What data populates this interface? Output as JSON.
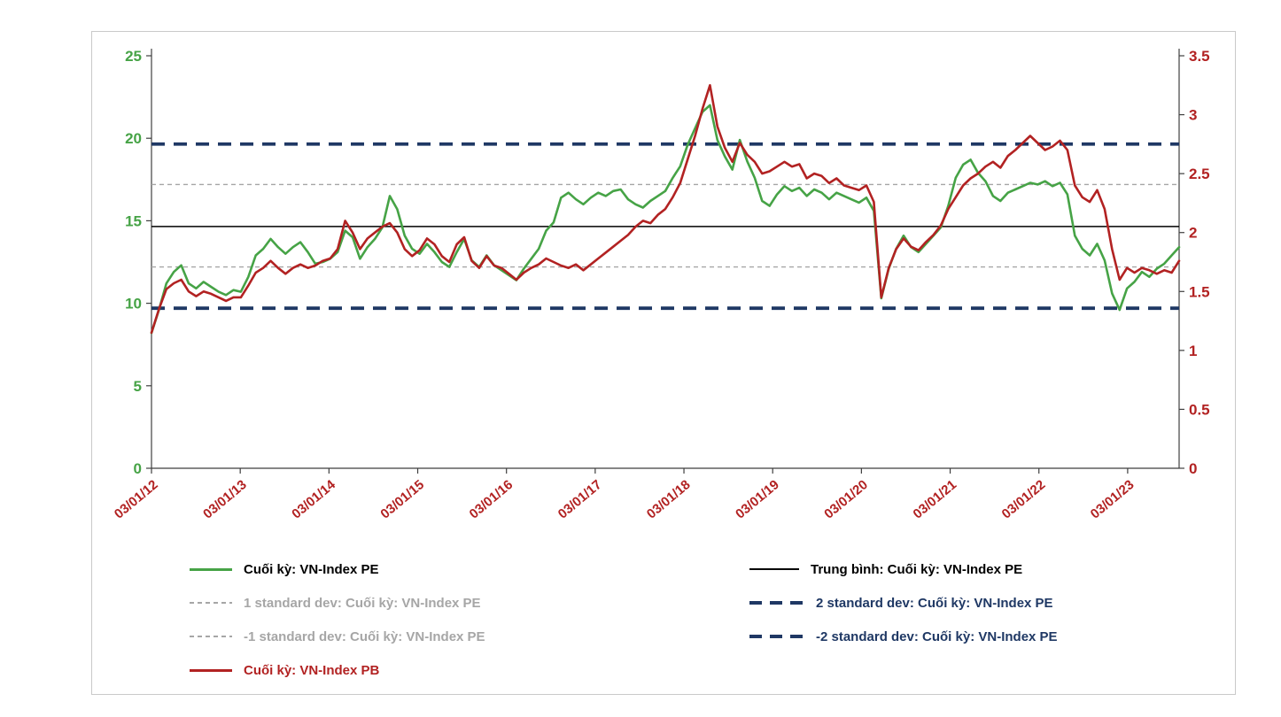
{
  "colors": {
    "pe_green": "#46A346",
    "pb_red": "#B22222",
    "navy": "#1F3864",
    "gray": "#A6A6A6",
    "mean_black": "#000000",
    "frame_border": "#c9c9c9"
  },
  "legend": {
    "col1": [
      {
        "label": "Cuối kỳ: VN-Index PE",
        "color": "#000000",
        "sample": "green-solid"
      },
      {
        "label": "1 standard dev: Cuối kỳ: VN-Index PE",
        "color": "#A6A6A6",
        "sample": "gray-dashed"
      },
      {
        "label": "-1 standard dev: Cuối kỳ: VN-Index PE",
        "color": "#A6A6A6",
        "sample": "gray-dashed"
      },
      {
        "label": "Cuối kỳ: VN-Index PB",
        "color": "#B22222",
        "sample": "red-solid"
      }
    ],
    "col2": [
      {
        "label": "Trung bình: Cuối kỳ: VN-Index PE",
        "color": "#000000",
        "sample": "black-solid"
      },
      {
        "label": "2 standard dev: Cuối kỳ: VN-Index PE",
        "color": "#1F3864",
        "sample": "navy-dashed"
      },
      {
        "label": "-2 standard dev: Cuối kỳ: VN-Index PE",
        "color": "#1F3864",
        "sample": "navy-dashed"
      }
    ]
  },
  "chart_data": {
    "type": "line",
    "title": "",
    "grid": false,
    "legend_position": "bottom",
    "x_interval": "monthly",
    "x_start": "2012-01",
    "x_range_years": [
      2012.0,
      2023.58
    ],
    "x_tick_labels": [
      "03/01/12",
      "03/01/13",
      "03/01/14",
      "03/01/15",
      "03/01/16",
      "03/01/17",
      "03/01/18",
      "03/01/19",
      "03/01/20",
      "03/01/21",
      "03/01/22",
      "03/01/23"
    ],
    "x_label_color": "#B22222",
    "left_axis": {
      "min": 0,
      "max": 25,
      "ticks": [
        0,
        5,
        10,
        15,
        20,
        25
      ],
      "color": "#46A346"
    },
    "right_axis": {
      "min": 0,
      "max": 3.5,
      "ticks": [
        0,
        0.5,
        1,
        1.5,
        2,
        2.5,
        3,
        3.5
      ],
      "color": "#B22222"
    },
    "reference_lines": [
      {
        "name": "mean",
        "label": "Trung bình: Cuối kỳ: VN-Index PE",
        "axis": "left",
        "value": 14.65,
        "style": "solid",
        "color": "#000000",
        "width": 1.5
      },
      {
        "name": "plus-1-sd",
        "label": "1 standard dev: Cuối kỳ: VN-Index PE",
        "axis": "left",
        "value": 17.2,
        "style": "dashed",
        "color": "#A6A6A6",
        "width": 1.4
      },
      {
        "name": "minus-1-sd",
        "label": "-1 standard dev: Cuối kỳ: VN-Index PE",
        "axis": "left",
        "value": 12.2,
        "style": "dashed",
        "color": "#A6A6A6",
        "width": 1.4
      },
      {
        "name": "plus-2-sd",
        "label": "2 standard dev: Cuối kỳ: VN-Index PE",
        "axis": "left",
        "value": 19.65,
        "style": "bold-dashed",
        "color": "#1F3864",
        "width": 3.8
      },
      {
        "name": "minus-2-sd",
        "label": "-2 standard dev: Cuối kỳ: VN-Index PE",
        "axis": "left",
        "value": 9.7,
        "style": "bold-dashed",
        "color": "#1F3864",
        "width": 3.8
      }
    ],
    "series": [
      {
        "name": "Cuối kỳ: VN-Index PE",
        "axis": "left",
        "color": "#46A346",
        "style": "solid",
        "values": [
          8.2,
          9.6,
          11.2,
          11.9,
          12.3,
          11.2,
          10.9,
          11.3,
          11.0,
          10.7,
          10.5,
          10.8,
          10.7,
          11.6,
          12.9,
          13.3,
          13.9,
          13.4,
          13.0,
          13.4,
          13.7,
          13.1,
          12.4,
          12.5,
          12.7,
          13.1,
          14.4,
          14.0,
          12.7,
          13.4,
          13.9,
          14.6,
          16.5,
          15.7,
          14.1,
          13.3,
          13.0,
          13.6,
          13.1,
          12.5,
          12.2,
          13.1,
          13.9,
          12.6,
          12.2,
          12.9,
          12.3,
          12.0,
          11.7,
          11.4,
          12.1,
          12.7,
          13.3,
          14.4,
          14.9,
          16.4,
          16.7,
          16.3,
          16.0,
          16.4,
          16.7,
          16.5,
          16.8,
          16.9,
          16.3,
          16.0,
          15.8,
          16.2,
          16.5,
          16.8,
          17.6,
          18.3,
          19.6,
          20.6,
          21.6,
          22.0,
          19.9,
          18.9,
          18.1,
          19.9,
          18.6,
          17.6,
          16.2,
          15.9,
          16.6,
          17.1,
          16.8,
          17.0,
          16.5,
          16.9,
          16.7,
          16.3,
          16.7,
          16.5,
          16.3,
          16.1,
          16.4,
          15.6,
          10.3,
          12.1,
          13.3,
          14.1,
          13.4,
          13.1,
          13.6,
          14.1,
          14.6,
          15.9,
          17.6,
          18.4,
          18.7,
          17.9,
          17.4,
          16.5,
          16.2,
          16.7,
          16.9,
          17.1,
          17.3,
          17.2,
          17.4,
          17.1,
          17.3,
          16.6,
          14.1,
          13.3,
          12.9,
          13.6,
          12.6,
          10.6,
          9.6,
          10.9,
          11.3,
          11.9,
          11.6,
          12.1,
          12.4,
          12.9,
          13.4
        ]
      },
      {
        "name": "Cuối kỳ: VN-Index PB",
        "axis": "right",
        "color": "#B22222",
        "style": "solid",
        "values": [
          1.15,
          1.35,
          1.52,
          1.57,
          1.6,
          1.5,
          1.46,
          1.5,
          1.48,
          1.45,
          1.42,
          1.45,
          1.45,
          1.55,
          1.66,
          1.7,
          1.76,
          1.7,
          1.65,
          1.7,
          1.73,
          1.7,
          1.72,
          1.76,
          1.78,
          1.86,
          2.1,
          2.0,
          1.86,
          1.95,
          2.0,
          2.05,
          2.08,
          2.0,
          1.86,
          1.8,
          1.85,
          1.95,
          1.9,
          1.8,
          1.75,
          1.9,
          1.96,
          1.76,
          1.7,
          1.8,
          1.72,
          1.7,
          1.65,
          1.6,
          1.66,
          1.7,
          1.73,
          1.78,
          1.75,
          1.72,
          1.7,
          1.73,
          1.68,
          1.73,
          1.78,
          1.83,
          1.88,
          1.93,
          1.98,
          2.05,
          2.1,
          2.08,
          2.15,
          2.2,
          2.3,
          2.42,
          2.62,
          2.82,
          3.05,
          3.25,
          2.9,
          2.72,
          2.6,
          2.76,
          2.66,
          2.6,
          2.5,
          2.52,
          2.56,
          2.6,
          2.56,
          2.58,
          2.46,
          2.5,
          2.48,
          2.42,
          2.46,
          2.4,
          2.38,
          2.36,
          2.4,
          2.26,
          1.45,
          1.7,
          1.86,
          1.95,
          1.88,
          1.85,
          1.92,
          1.98,
          2.06,
          2.2,
          2.3,
          2.4,
          2.46,
          2.5,
          2.56,
          2.6,
          2.55,
          2.65,
          2.7,
          2.76,
          2.82,
          2.76,
          2.7,
          2.73,
          2.78,
          2.7,
          2.4,
          2.3,
          2.26,
          2.36,
          2.2,
          1.86,
          1.6,
          1.7,
          1.66,
          1.7,
          1.68,
          1.65,
          1.68,
          1.66,
          1.76
        ]
      }
    ]
  }
}
